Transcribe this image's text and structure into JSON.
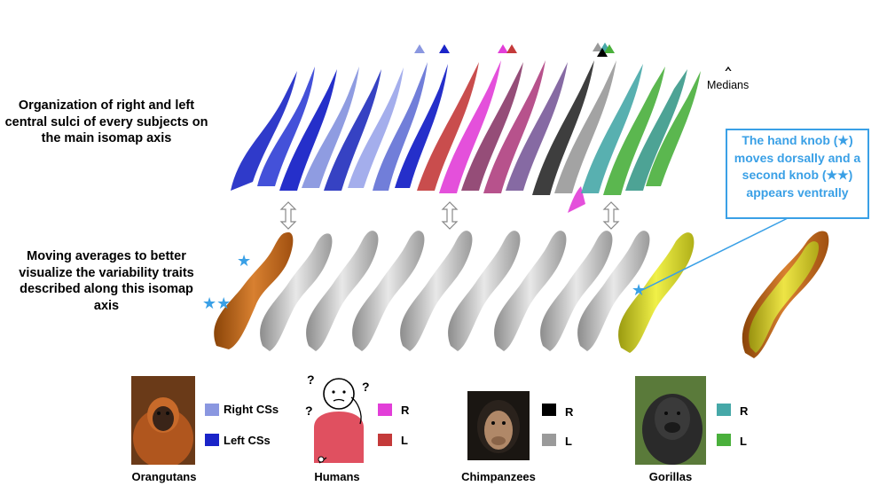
{
  "left_text": {
    "top_caption": "Organization of right and left central sulci of every subjects on the main isomap axis",
    "bottom_caption": "Moving averages to better visualize the variability traits described along this isomap axis"
  },
  "callout": {
    "text": "The hand knob (★) moves dorsally and a second knob (★★) appears ventrally"
  },
  "medians_label": "Medians",
  "stars": {
    "single": "★",
    "double": "★★"
  },
  "colors": {
    "right_css": "#8a97e0",
    "left_css": "#1a24c8",
    "human_r": "#e23ed8",
    "human_l": "#c43a3a",
    "chimp_r": "#000000",
    "chimp_l": "#9a9a9a",
    "gorilla_r": "#46a8a8",
    "gorilla_l": "#4ab03c",
    "callout": "#3aa0e6",
    "orange_sulcus": "#c86a1a",
    "yellow_sulcus": "#d8d820"
  },
  "legend": {
    "orangutans": {
      "right": "Right CSs",
      "left": "Left CSs",
      "name": "Orangutans"
    },
    "humans": {
      "right": "R",
      "left": "L",
      "name": "Humans",
      "question": "?"
    },
    "chimpanzees": {
      "right": "R",
      "left": "L",
      "name": "Chimpanzees"
    },
    "gorillas": {
      "right": "R",
      "left": "L",
      "name": "Gorillas"
    }
  }
}
